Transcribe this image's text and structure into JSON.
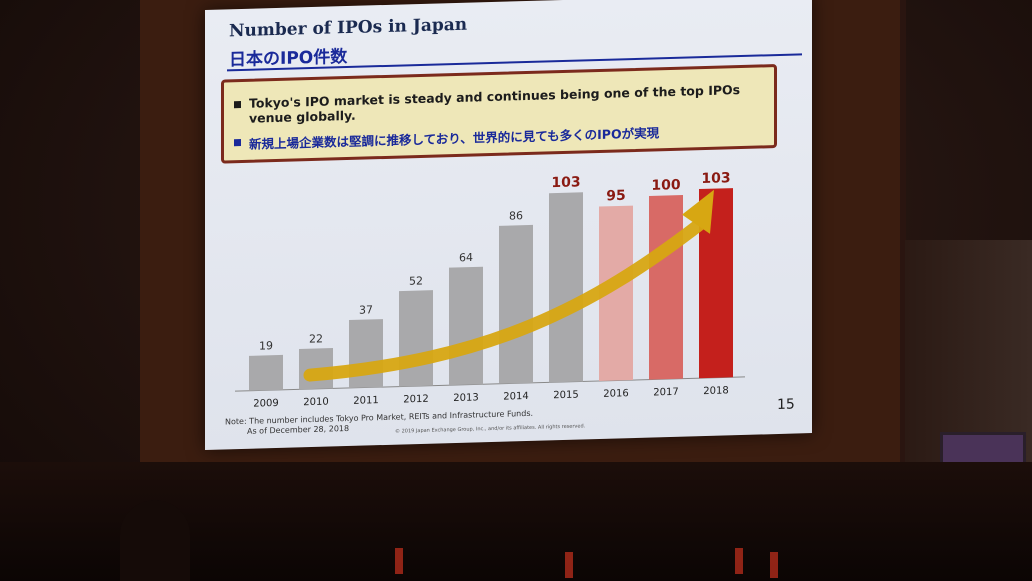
{
  "slide": {
    "title_en": "Number of IPOs in Japan",
    "title_jp": "日本のIPO件数",
    "bullets": [
      "Tokyo's IPO market is steady and continues being one of the top IPOs venue globally.",
      "新規上場企業数は堅調に推移しており、世界的に見ても多くのIPOが実現"
    ],
    "note_line1": "Note: The number includes Tokyo Pro Market, REITs and Infrastructure Funds.",
    "note_line2": "As of December 28, 2018",
    "copyright": "© 2019 Japan Exchange Group, Inc., and/or its affiliates. All rights reserved.",
    "page_number": "15"
  },
  "chart_data": {
    "type": "bar",
    "categories": [
      "2009",
      "2010",
      "2011",
      "2012",
      "2013",
      "2014",
      "2015",
      "2016",
      "2017",
      "2018"
    ],
    "values": [
      19,
      22,
      37,
      52,
      64,
      86,
      103,
      95,
      100,
      103
    ],
    "title": "Number of IPOs in Japan",
    "ylim": [
      0,
      110
    ],
    "colors": [
      "#a9a9ab",
      "#a9a9ab",
      "#a9a9ab",
      "#a9a9ab",
      "#a9a9ab",
      "#a9a9ab",
      "#a9a9ab",
      "#e3aaa6",
      "#d86a66",
      "#c4201c"
    ],
    "label_colors": [
      "#333333",
      "#333333",
      "#333333",
      "#333333",
      "#333333",
      "#333333",
      "#8a1a12",
      "#8a1a12",
      "#8a1a12",
      "#8a1a12"
    ],
    "arrow_color": "#d7a712",
    "grid": false
  }
}
